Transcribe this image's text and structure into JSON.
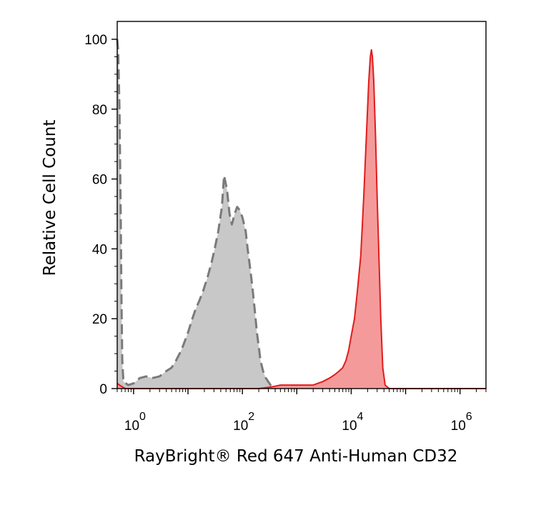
{
  "chart_data": {
    "type": "area",
    "title": "",
    "xlabel": "RayBright® Red 647 Anti-Human CD32",
    "ylabel": "Relative Cell Count",
    "x_scale": "log",
    "xlim": [
      0.5,
      3000000
    ],
    "ylim": [
      0,
      100
    ],
    "y_ticks": [
      0,
      20,
      40,
      60,
      80,
      100
    ],
    "y_tick_labels": [
      "0",
      "20",
      "40",
      "60",
      "80",
      "100"
    ],
    "x_ticks": [
      {
        "value": 1,
        "base": "10",
        "exponent": "0"
      },
      {
        "value": 100,
        "base": "10",
        "exponent": "2"
      },
      {
        "value": 10000,
        "base": "10",
        "exponent": "4"
      },
      {
        "value": 1000000,
        "base": "10",
        "exponent": "6"
      }
    ],
    "grid": false,
    "legend": "none",
    "series": [
      {
        "style": "dashed",
        "fill_color": "#c8c8c8",
        "line_color": "#7a7a7a",
        "points": [
          [
            0.5,
            100
          ],
          [
            0.52,
            97
          ],
          [
            0.55,
            80
          ],
          [
            0.58,
            50
          ],
          [
            0.6,
            25
          ],
          [
            0.62,
            8
          ],
          [
            0.65,
            2
          ],
          [
            0.8,
            1
          ],
          [
            1,
            1.5
          ],
          [
            1.3,
            3
          ],
          [
            1.7,
            3.5
          ],
          [
            2.2,
            3
          ],
          [
            3,
            3.5
          ],
          [
            4,
            5
          ],
          [
            5,
            6
          ],
          [
            6,
            8
          ],
          [
            7,
            10
          ],
          [
            8,
            12
          ],
          [
            10,
            16
          ],
          [
            12,
            20
          ],
          [
            14,
            23
          ],
          [
            16,
            25
          ],
          [
            19,
            28
          ],
          [
            23,
            32
          ],
          [
            27,
            36
          ],
          [
            31,
            40
          ],
          [
            36,
            45
          ],
          [
            42,
            52
          ],
          [
            46,
            61
          ],
          [
            52,
            57
          ],
          [
            58,
            50
          ],
          [
            64,
            47
          ],
          [
            72,
            50
          ],
          [
            80,
            52
          ],
          [
            90,
            51
          ],
          [
            100,
            49
          ],
          [
            115,
            45
          ],
          [
            125,
            40
          ],
          [
            140,
            34
          ],
          [
            155,
            28
          ],
          [
            170,
            22
          ],
          [
            185,
            16
          ],
          [
            200,
            12
          ],
          [
            215,
            8
          ],
          [
            240,
            5
          ],
          [
            270,
            3
          ],
          [
            330,
            1
          ],
          [
            420,
            0
          ]
        ]
      },
      {
        "style": "solid",
        "fill_color": "#f59a9a",
        "line_color": "#e11c1c",
        "points": [
          [
            0.5,
            1.5
          ],
          [
            0.55,
            1
          ],
          [
            0.7,
            0
          ],
          [
            200,
            0
          ],
          [
            350,
            0.5
          ],
          [
            500,
            1
          ],
          [
            700,
            1
          ],
          [
            1000,
            1
          ],
          [
            2000,
            1
          ],
          [
            3000,
            2
          ],
          [
            4000,
            3
          ],
          [
            5000,
            4
          ],
          [
            6000,
            5
          ],
          [
            7000,
            6
          ],
          [
            8000,
            8
          ],
          [
            9000,
            11
          ],
          [
            10000,
            15
          ],
          [
            11500,
            20
          ],
          [
            13000,
            28
          ],
          [
            15000,
            38
          ],
          [
            17000,
            55
          ],
          [
            19000,
            72
          ],
          [
            21000,
            88
          ],
          [
            22500,
            95
          ],
          [
            23500,
            97
          ],
          [
            24500,
            95
          ],
          [
            26000,
            88
          ],
          [
            28000,
            72
          ],
          [
            30000,
            55
          ],
          [
            32000,
            40
          ],
          [
            35000,
            20
          ],
          [
            38000,
            6
          ],
          [
            42000,
            1
          ],
          [
            50000,
            0
          ],
          [
            3000000,
            0
          ]
        ]
      }
    ]
  }
}
